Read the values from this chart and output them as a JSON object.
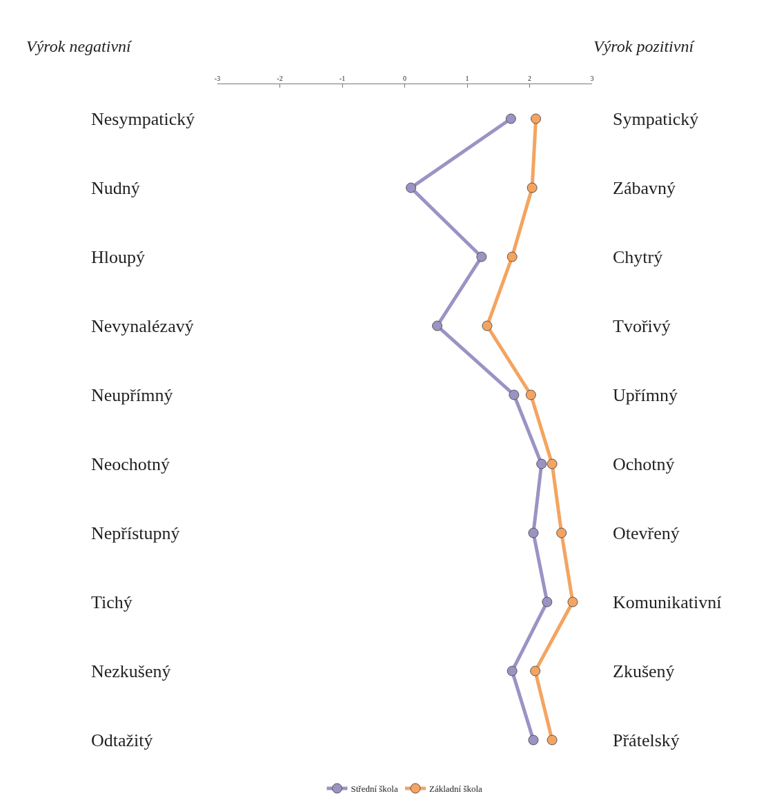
{
  "chart_data": {
    "type": "line",
    "annotations": [
      "Výrok negativní",
      "Výrok pozitivní"
    ],
    "categories": [
      "Nesympatický",
      "Nudný",
      "Hloupý",
      "Nevynalézavý",
      "Neupřímný",
      "Neochotný",
      "Nepřístupný",
      "Tichý",
      "Nezkušený",
      "Odtažitý"
    ],
    "y2_categories": [
      "Sympatický",
      "Zábavný",
      "Chytrý",
      "Tvořivý",
      "Upřímný",
      "Ochotný",
      "Otevřený",
      "Komunikativní",
      "Zkušený",
      "Přátelský"
    ],
    "orientation": "horizontal",
    "xlim": [
      -3,
      3
    ],
    "xticks": [
      -3,
      -2,
      -1,
      0,
      1,
      2,
      3
    ],
    "series": [
      {
        "name": "Střední škola",
        "color": "#9a93c4",
        "values": [
          1.7,
          0.1,
          1.23,
          0.52,
          1.75,
          2.19,
          2.06,
          2.28,
          1.72,
          2.06
        ]
      },
      {
        "name": "Základní škola",
        "color": "#f4a460",
        "values": [
          2.1,
          2.04,
          1.72,
          1.32,
          2.02,
          2.36,
          2.51,
          2.69,
          2.09,
          2.36
        ]
      }
    ],
    "marker": "circle",
    "legend": "bottom"
  }
}
